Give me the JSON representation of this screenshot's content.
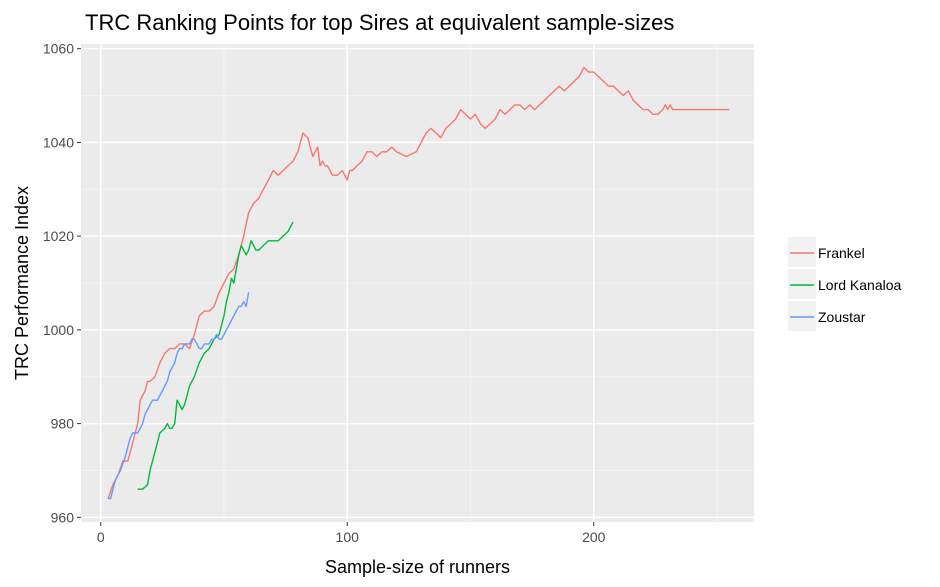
{
  "chart_data": {
    "type": "line",
    "title": "TRC Ranking Points for top Sires at equivalent sample-sizes",
    "xlabel": "Sample-size of runners",
    "ylabel": "TRC Performance Index",
    "xlim": [
      -8,
      265
    ],
    "ylim": [
      959,
      1061
    ],
    "x_ticks": [
      0,
      100,
      200
    ],
    "y_ticks": [
      960,
      980,
      1000,
      1020,
      1040,
      1060
    ],
    "grid": true,
    "legend_position": "right",
    "series": [
      {
        "name": "Frankel",
        "color": "#F8766D",
        "x": [
          3,
          5,
          7,
          9,
          11,
          13,
          15,
          16,
          17,
          18,
          19,
          20,
          22,
          24,
          26,
          28,
          30,
          32,
          34,
          36,
          38,
          40,
          42,
          44,
          46,
          48,
          50,
          52,
          54,
          56,
          58,
          60,
          62,
          64,
          66,
          68,
          70,
          72,
          74,
          76,
          78,
          80,
          82,
          84,
          86,
          88,
          89,
          90,
          91,
          92,
          94,
          96,
          98,
          100,
          101,
          102,
          104,
          106,
          108,
          110,
          112,
          114,
          116,
          118,
          120,
          124,
          128,
          130,
          132,
          134,
          136,
          138,
          140,
          142,
          144,
          146,
          148,
          150,
          152,
          154,
          156,
          158,
          160,
          162,
          164,
          166,
          168,
          170,
          172,
          174,
          176,
          178,
          180,
          182,
          184,
          186,
          188,
          190,
          192,
          194,
          196,
          198,
          200,
          202,
          204,
          206,
          208,
          210,
          212,
          214,
          216,
          218,
          220,
          222,
          224,
          226,
          228,
          229,
          230,
          231,
          232,
          233,
          234,
          235,
          236,
          237,
          238,
          240,
          242,
          244,
          246,
          248,
          250,
          252,
          255
        ],
        "values": [
          964,
          967,
          969,
          972,
          972,
          976,
          980,
          985,
          986,
          987,
          989,
          989,
          990,
          993,
          995,
          996,
          996,
          997,
          997,
          996,
          999,
          1003,
          1004,
          1004,
          1005,
          1008,
          1010,
          1012,
          1013,
          1016,
          1020,
          1025,
          1027,
          1028,
          1030,
          1032,
          1034,
          1033,
          1034,
          1035,
          1036,
          1038,
          1042,
          1041,
          1037,
          1039,
          1035,
          1036,
          1035,
          1035,
          1033,
          1033,
          1034,
          1032,
          1034,
          1034,
          1035,
          1036,
          1038,
          1038,
          1037,
          1038,
          1038,
          1039,
          1038,
          1037,
          1038,
          1040,
          1042,
          1043,
          1042,
          1041,
          1043,
          1044,
          1045,
          1047,
          1046,
          1045,
          1046,
          1044,
          1043,
          1044,
          1045,
          1047,
          1046,
          1047,
          1048,
          1048,
          1047,
          1048,
          1047,
          1048,
          1049,
          1050,
          1051,
          1052,
          1051,
          1052,
          1053,
          1054,
          1056,
          1055,
          1055,
          1054,
          1053,
          1052,
          1052,
          1051,
          1050,
          1051,
          1049,
          1048,
          1047,
          1047,
          1046,
          1046,
          1047,
          1048,
          1047,
          1048,
          1047,
          1047,
          1047,
          1047,
          1047,
          1047,
          1047,
          1047,
          1047,
          1047,
          1047,
          1047,
          1047,
          1047,
          1047
        ],
        "_note": ""
      },
      {
        "name": "Lord Kanaloa",
        "color": "#00BA38",
        "x": [
          15,
          17,
          19,
          20,
          22,
          24,
          26,
          27,
          28,
          29,
          30,
          31,
          32,
          33,
          34,
          35,
          36,
          37,
          38,
          40,
          42,
          44,
          46,
          48,
          50,
          51,
          52,
          53,
          54,
          55,
          56,
          57,
          58,
          59,
          60,
          61,
          62,
          63,
          64,
          66,
          68,
          70,
          72,
          74,
          76,
          78
        ],
        "values": [
          966,
          966,
          967,
          970,
          974,
          978,
          979,
          980,
          979,
          979,
          980,
          985,
          984,
          983,
          984,
          986,
          988,
          989,
          990,
          993,
          995,
          996,
          998,
          999,
          1003,
          1006,
          1008,
          1011,
          1010,
          1013,
          1016,
          1018,
          1017,
          1016,
          1017,
          1019,
          1018,
          1017,
          1017,
          1018,
          1019,
          1019,
          1019,
          1020,
          1021,
          1023
        ]
      },
      {
        "name": "Zoustar",
        "color": "#619CFF",
        "x": [
          3,
          4,
          5,
          6,
          8,
          10,
          11,
          12,
          13,
          14,
          15,
          16,
          17,
          18,
          19,
          20,
          21,
          22,
          23,
          24,
          25,
          26,
          27,
          28,
          29,
          30,
          31,
          32,
          33,
          34,
          35,
          36,
          37,
          38,
          39,
          40,
          41,
          42,
          43,
          44,
          45,
          46,
          47,
          48,
          49,
          50,
          51,
          52,
          53,
          54,
          55,
          56,
          57,
          58,
          59,
          60
        ],
        "values": [
          964,
          964,
          966,
          968,
          970,
          973,
          975,
          977,
          978,
          978,
          978,
          979,
          980,
          982,
          983,
          984,
          985,
          985,
          985,
          986,
          987,
          988,
          989,
          991,
          992,
          993,
          995,
          996,
          996,
          997,
          997,
          997,
          998,
          998,
          997,
          996,
          996,
          997,
          997,
          997,
          998,
          998,
          999,
          998,
          998,
          999,
          1000,
          1001,
          1002,
          1003,
          1004,
          1005,
          1005,
          1006,
          1005,
          1008
        ]
      }
    ]
  }
}
